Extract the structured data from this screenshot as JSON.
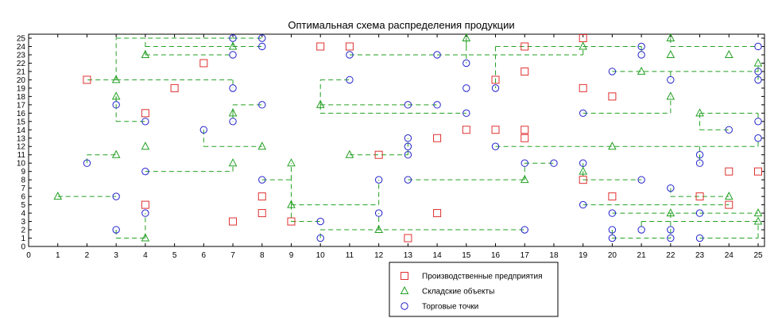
{
  "chart_data": {
    "type": "scatter",
    "title": "Оптимальная схема распределения продукции",
    "xlim": [
      0,
      25
    ],
    "ylim": [
      0,
      25
    ],
    "xticks": [
      "0",
      "1",
      "2",
      "3",
      "4",
      "5",
      "6",
      "7",
      "8",
      "9",
      "10",
      "11",
      "12",
      "13",
      "14",
      "15",
      "16",
      "17",
      "18",
      "19",
      "20",
      "21",
      "22",
      "23",
      "24",
      "25"
    ],
    "yticks": [
      "0",
      "1",
      "2",
      "3",
      "4",
      "5",
      "6",
      "7",
      "8",
      "9",
      "10",
      "11",
      "12",
      "13",
      "14",
      "15",
      "16",
      "17",
      "18",
      "19",
      "20",
      "21",
      "22",
      "23",
      "24",
      "25"
    ],
    "grid": false,
    "legend_position": "bottom-center",
    "series": [
      {
        "name": "Производственные предприятия",
        "marker": "square",
        "color": "#e03030",
        "points": [
          [
            2,
            20
          ],
          [
            4,
            16
          ],
          [
            4,
            5
          ],
          [
            5,
            19
          ],
          [
            6,
            22
          ],
          [
            7,
            3
          ],
          [
            8,
            6
          ],
          [
            8,
            4
          ],
          [
            9,
            3
          ],
          [
            10,
            24
          ],
          [
            11,
            24
          ],
          [
            12,
            11
          ],
          [
            13,
            1
          ],
          [
            14,
            13
          ],
          [
            14,
            4
          ],
          [
            15,
            14
          ],
          [
            16,
            20
          ],
          [
            16,
            14
          ],
          [
            17,
            24
          ],
          [
            17,
            21
          ],
          [
            17,
            14
          ],
          [
            17,
            13
          ],
          [
            19,
            25
          ],
          [
            19,
            19
          ],
          [
            19,
            8
          ],
          [
            20,
            18
          ],
          [
            20,
            6
          ],
          [
            23,
            6
          ],
          [
            24,
            9
          ],
          [
            24,
            5
          ],
          [
            25,
            9
          ]
        ]
      },
      {
        "name": "Складские объекты",
        "marker": "triangle",
        "color": "#22a022",
        "points": [
          [
            1,
            6
          ],
          [
            3,
            20
          ],
          [
            3,
            18
          ],
          [
            3,
            11
          ],
          [
            4,
            23
          ],
          [
            4,
            12
          ],
          [
            4,
            1
          ],
          [
            7,
            24
          ],
          [
            7,
            16
          ],
          [
            7,
            10
          ],
          [
            8,
            12
          ],
          [
            9,
            10
          ],
          [
            9,
            5
          ],
          [
            10,
            17
          ],
          [
            11,
            11
          ],
          [
            12,
            2
          ],
          [
            15,
            25
          ],
          [
            17,
            8
          ],
          [
            19,
            24
          ],
          [
            19,
            9
          ],
          [
            20,
            12
          ],
          [
            21,
            21
          ],
          [
            22,
            25
          ],
          [
            22,
            23
          ],
          [
            22,
            18
          ],
          [
            22,
            4
          ],
          [
            23,
            16
          ],
          [
            24,
            23
          ],
          [
            24,
            6
          ],
          [
            25,
            22
          ],
          [
            25,
            4
          ],
          [
            25,
            3
          ]
        ]
      },
      {
        "name": "Торговые точки",
        "marker": "circle",
        "color": "#2222cc",
        "points": [
          [
            2,
            10
          ],
          [
            3,
            17
          ],
          [
            3,
            6
          ],
          [
            3,
            2
          ],
          [
            4,
            15
          ],
          [
            4,
            9
          ],
          [
            4,
            4
          ],
          [
            6,
            14
          ],
          [
            7,
            25
          ],
          [
            7,
            23
          ],
          [
            7,
            19
          ],
          [
            7,
            15
          ],
          [
            8,
            25
          ],
          [
            8,
            24
          ],
          [
            8,
            17
          ],
          [
            8,
            8
          ],
          [
            10,
            3
          ],
          [
            10,
            1
          ],
          [
            11,
            23
          ],
          [
            11,
            20
          ],
          [
            12,
            8
          ],
          [
            12,
            4
          ],
          [
            13,
            17
          ],
          [
            13,
            13
          ],
          [
            13,
            12
          ],
          [
            13,
            11
          ],
          [
            13,
            8
          ],
          [
            14,
            23
          ],
          [
            14,
            17
          ],
          [
            15,
            22
          ],
          [
            15,
            19
          ],
          [
            15,
            16
          ],
          [
            16,
            19
          ],
          [
            16,
            12
          ],
          [
            17,
            10
          ],
          [
            17,
            2
          ],
          [
            18,
            10
          ],
          [
            19,
            16
          ],
          [
            19,
            10
          ],
          [
            19,
            5
          ],
          [
            20,
            21
          ],
          [
            20,
            4
          ],
          [
            20,
            2
          ],
          [
            20,
            1
          ],
          [
            21,
            24
          ],
          [
            21,
            23
          ],
          [
            21,
            8
          ],
          [
            21,
            2
          ],
          [
            22,
            20
          ],
          [
            22,
            7
          ],
          [
            22,
            2
          ],
          [
            22,
            1
          ],
          [
            23,
            11
          ],
          [
            23,
            10
          ],
          [
            23,
            4
          ],
          [
            23,
            1
          ],
          [
            24,
            14
          ],
          [
            25,
            24
          ],
          [
            25,
            21
          ],
          [
            25,
            20
          ],
          [
            25,
            15
          ],
          [
            25,
            13
          ]
        ]
      }
    ],
    "links": [
      [
        [
          3,
          20
        ],
        [
          2,
          20
        ]
      ],
      [
        [
          3,
          20
        ],
        [
          7,
          20
        ]
      ],
      [
        [
          7,
          20
        ],
        [
          7,
          19
        ]
      ],
      [
        [
          3,
          18
        ],
        [
          3,
          17
        ]
      ],
      [
        [
          3,
          18
        ],
        [
          3,
          15
        ]
      ],
      [
        [
          3,
          15
        ],
        [
          4,
          15
        ]
      ],
      [
        [
          3,
          20
        ],
        [
          3,
          25
        ]
      ],
      [
        [
          3,
          25
        ],
        [
          7,
          25
        ]
      ],
      [
        [
          4,
          23
        ],
        [
          4,
          25
        ]
      ],
      [
        [
          4,
          23
        ],
        [
          7,
          23
        ]
      ],
      [
        [
          4,
          24
        ],
        [
          7,
          24
        ]
      ],
      [
        [
          7,
          24
        ],
        [
          7,
          25
        ]
      ],
      [
        [
          7,
          25
        ],
        [
          8,
          25
        ]
      ],
      [
        [
          7,
          24
        ],
        [
          8,
          24
        ]
      ],
      [
        [
          2,
          10
        ],
        [
          2,
          11
        ]
      ],
      [
        [
          2,
          11
        ],
        [
          3,
          11
        ]
      ],
      [
        [
          1,
          6
        ],
        [
          3,
          6
        ]
      ],
      [
        [
          3,
          2
        ],
        [
          3,
          1
        ]
      ],
      [
        [
          3,
          1
        ],
        [
          4,
          1
        ]
      ],
      [
        [
          4,
          1
        ],
        [
          4,
          4
        ]
      ],
      [
        [
          4,
          9
        ],
        [
          7,
          9
        ]
      ],
      [
        [
          7,
          9
        ],
        [
          7,
          10
        ]
      ],
      [
        [
          6,
          14
        ],
        [
          6,
          12
        ]
      ],
      [
        [
          6,
          12
        ],
        [
          8,
          12
        ]
      ],
      [
        [
          7,
          16
        ],
        [
          7,
          15
        ]
      ],
      [
        [
          7,
          16
        ],
        [
          7,
          17
        ]
      ],
      [
        [
          7,
          17
        ],
        [
          8,
          17
        ]
      ],
      [
        [
          8,
          8
        ],
        [
          9,
          8
        ]
      ],
      [
        [
          9,
          8
        ],
        [
          9,
          10
        ]
      ],
      [
        [
          9,
          5
        ],
        [
          9,
          8
        ]
      ],
      [
        [
          9,
          5
        ],
        [
          12,
          5
        ]
      ],
      [
        [
          12,
          5
        ],
        [
          12,
          8
        ]
      ],
      [
        [
          9,
          5
        ],
        [
          9,
          3
        ]
      ],
      [
        [
          9,
          3
        ],
        [
          10,
          3
        ]
      ],
      [
        [
          10,
          1
        ],
        [
          10,
          2
        ]
      ],
      [
        [
          10,
          2
        ],
        [
          17,
          2
        ]
      ],
      [
        [
          12,
          2
        ],
        [
          12,
          4
        ]
      ],
      [
        [
          10,
          17
        ],
        [
          13,
          17
        ]
      ],
      [
        [
          13,
          17
        ],
        [
          14,
          17
        ]
      ],
      [
        [
          10,
          17
        ],
        [
          10,
          16
        ]
      ],
      [
        [
          10,
          16
        ],
        [
          15,
          16
        ]
      ],
      [
        [
          10,
          17
        ],
        [
          10,
          20
        ]
      ],
      [
        [
          10,
          20
        ],
        [
          11,
          20
        ]
      ],
      [
        [
          11,
          11
        ],
        [
          13,
          11
        ]
      ],
      [
        [
          13,
          11
        ],
        [
          13,
          13
        ]
      ],
      [
        [
          13,
          12
        ],
        [
          13,
          12
        ]
      ],
      [
        [
          13,
          8
        ],
        [
          17,
          8
        ]
      ],
      [
        [
          17,
          8
        ],
        [
          17,
          10
        ]
      ],
      [
        [
          17,
          10
        ],
        [
          18,
          10
        ]
      ],
      [
        [
          11,
          23
        ],
        [
          19,
          23
        ]
      ],
      [
        [
          19,
          23
        ],
        [
          19,
          24
        ]
      ],
      [
        [
          14,
          23
        ],
        [
          14,
          23
        ]
      ],
      [
        [
          15,
          25
        ],
        [
          15,
          22
        ]
      ],
      [
        [
          15,
          24
        ],
        [
          15,
          25
        ]
      ],
      [
        [
          16,
          24
        ],
        [
          19,
          24
        ]
      ],
      [
        [
          16,
          24
        ],
        [
          16,
          19
        ]
      ],
      [
        [
          19,
          24
        ],
        [
          21,
          24
        ]
      ],
      [
        [
          21,
          24
        ],
        [
          21,
          23
        ]
      ],
      [
        [
          22,
          25
        ],
        [
          22,
          24
        ]
      ],
      [
        [
          22,
          24
        ],
        [
          25,
          24
        ]
      ],
      [
        [
          20,
          21
        ],
        [
          25,
          21
        ]
      ],
      [
        [
          25,
          21
        ],
        [
          25,
          22
        ]
      ],
      [
        [
          22,
          21
        ],
        [
          22,
          20
        ]
      ],
      [
        [
          25,
          20
        ],
        [
          25,
          21
        ]
      ],
      [
        [
          19,
          16
        ],
        [
          22,
          16
        ]
      ],
      [
        [
          22,
          16
        ],
        [
          22,
          18
        ]
      ],
      [
        [
          23,
          16
        ],
        [
          25,
          16
        ]
      ],
      [
        [
          25,
          16
        ],
        [
          25,
          15
        ]
      ],
      [
        [
          23,
          16
        ],
        [
          23,
          14
        ]
      ],
      [
        [
          23,
          14
        ],
        [
          24,
          14
        ]
      ],
      [
        [
          16,
          12
        ],
        [
          25,
          12
        ]
      ],
      [
        [
          25,
          12
        ],
        [
          25,
          13
        ]
      ],
      [
        [
          23,
          12
        ],
        [
          23,
          10
        ]
      ],
      [
        [
          23,
          11
        ],
        [
          23,
          10
        ]
      ],
      [
        [
          19,
          10
        ],
        [
          19,
          9
        ]
      ],
      [
        [
          19,
          9
        ],
        [
          19,
          8
        ]
      ],
      [
        [
          19,
          8
        ],
        [
          21,
          8
        ]
      ],
      [
        [
          22,
          7
        ],
        [
          22,
          6
        ]
      ],
      [
        [
          22,
          6
        ],
        [
          24,
          6
        ]
      ],
      [
        [
          19,
          5
        ],
        [
          24,
          5
        ]
      ],
      [
        [
          20,
          4
        ],
        [
          25,
          4
        ]
      ],
      [
        [
          22,
          4
        ],
        [
          22,
          1
        ]
      ],
      [
        [
          20,
          1
        ],
        [
          22,
          1
        ]
      ],
      [
        [
          21,
          3
        ],
        [
          25,
          3
        ]
      ],
      [
        [
          21,
          3
        ],
        [
          21,
          2
        ]
      ],
      [
        [
          20,
          2
        ],
        [
          20,
          1
        ]
      ],
      [
        [
          23,
          1
        ],
        [
          25,
          1
        ]
      ],
      [
        [
          25,
          1
        ],
        [
          25,
          3
        ]
      ]
    ]
  }
}
